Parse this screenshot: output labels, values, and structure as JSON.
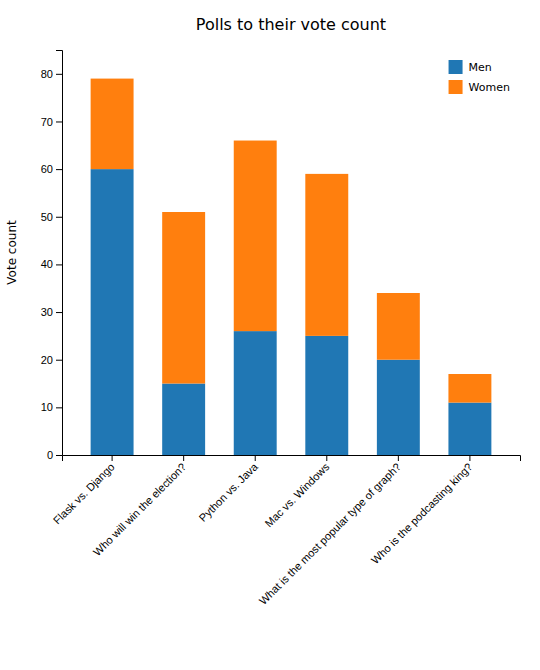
{
  "chart_data": {
    "type": "bar",
    "title": "Polls to their vote count",
    "ylabel": "Vote count",
    "categories": [
      "Flask vs. Django",
      "Who will win the election?",
      "Python vs. Java",
      "Mac vs. Windows",
      "What is the most popular type of graph?",
      "Who is the podcasting king?"
    ],
    "series": [
      {
        "name": "Men",
        "color": "#2077b4",
        "values": [
          60,
          15,
          26,
          25,
          20,
          11
        ]
      },
      {
        "name": "Women",
        "color": "#ff7f0e",
        "values": [
          19,
          36,
          40,
          34,
          14,
          6
        ]
      }
    ],
    "stacked": true,
    "ylim": [
      0,
      85
    ],
    "yticks": [
      0,
      10,
      20,
      30,
      40,
      50,
      60,
      70,
      80
    ],
    "grid": false,
    "legend": "upper right"
  }
}
